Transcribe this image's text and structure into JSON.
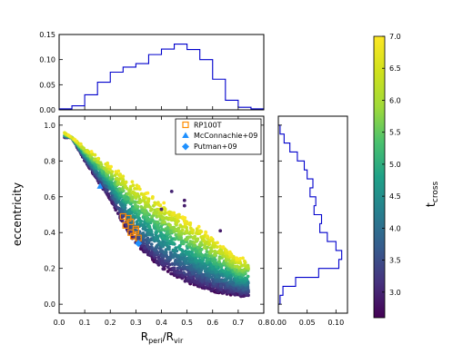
{
  "chart_data": [
    {
      "panel": "main",
      "type": "scatter",
      "xlabel": "R",
      "xlabel_sub": "peri",
      "xlabel_mid": "/R",
      "xlabel_sub2": "vir",
      "ylabel": "eccentricity",
      "xlim": [
        0.0,
        0.8
      ],
      "ylim": [
        -0.05,
        1.05
      ],
      "xticks": [
        "0.0",
        "0.1",
        "0.2",
        "0.3",
        "0.4",
        "0.5",
        "0.6",
        "0.7",
        "0.8"
      ],
      "yticks": [
        "0.0",
        "0.2",
        "0.4",
        "0.6",
        "0.8",
        "1.0"
      ],
      "simulated_cloud": {
        "description_of_shape": "band below upper envelope e = 1 - x",
        "upper_edge": [
          [
            0.0,
            0.98
          ],
          [
            0.1,
            0.88
          ],
          [
            0.2,
            0.78
          ],
          [
            0.3,
            0.68
          ],
          [
            0.4,
            0.58
          ],
          [
            0.5,
            0.48
          ],
          [
            0.6,
            0.38
          ],
          [
            0.7,
            0.26
          ]
        ],
        "lower_edge": [
          [
            0.05,
            0.93
          ],
          [
            0.1,
            0.8
          ],
          [
            0.2,
            0.58
          ],
          [
            0.25,
            0.45
          ],
          [
            0.3,
            0.33
          ],
          [
            0.4,
            0.2
          ],
          [
            0.5,
            0.12
          ],
          [
            0.6,
            0.07
          ],
          [
            0.72,
            0.04
          ]
        ],
        "color_variable": "t_cross"
      },
      "outliers": [
        {
          "x": 0.44,
          "y": 0.63,
          "t": 3.0
        },
        {
          "x": 0.49,
          "y": 0.58,
          "t": 2.9
        },
        {
          "x": 0.49,
          "y": 0.55,
          "t": 2.9
        },
        {
          "x": 0.4,
          "y": 0.53,
          "t": 3.0
        },
        {
          "x": 0.63,
          "y": 0.41,
          "t": 2.9
        }
      ],
      "series": [
        {
          "name": "RP100T",
          "marker": "open-square",
          "color": "#ff8c00",
          "points": [
            [
              0.25,
              0.49
            ],
            [
              0.27,
              0.48
            ],
            [
              0.28,
              0.46
            ],
            [
              0.26,
              0.44
            ],
            [
              0.28,
              0.4
            ],
            [
              0.3,
              0.42
            ],
            [
              0.29,
              0.38
            ],
            [
              0.31,
              0.37
            ],
            [
              0.3,
              0.41
            ]
          ]
        },
        {
          "name": "McConnachie+09",
          "marker": "triangle",
          "color": "#1e90ff",
          "points": [
            [
              0.16,
              0.66
            ]
          ]
        },
        {
          "name": "Putman+09",
          "marker": "diamond",
          "color": "#1e90ff",
          "points": [
            [
              0.31,
              0.34
            ]
          ]
        }
      ],
      "legend_position": "upper-right"
    },
    {
      "panel": "top-histogram",
      "type": "bar",
      "style": "step",
      "color": "#0000cc",
      "xlim": [
        0.0,
        0.8
      ],
      "ylim": [
        0.0,
        0.15
      ],
      "yticks": [
        "0.00",
        "0.05",
        "0.10",
        "0.15"
      ],
      "bin_edges": [
        0.0,
        0.05,
        0.1,
        0.15,
        0.2,
        0.25,
        0.3,
        0.35,
        0.4,
        0.45,
        0.5,
        0.55,
        0.6,
        0.65,
        0.7,
        0.75,
        0.8
      ],
      "values": [
        0.002,
        0.008,
        0.03,
        0.055,
        0.075,
        0.085,
        0.092,
        0.11,
        0.121,
        0.131,
        0.12,
        0.1,
        0.061,
        0.019,
        0.005,
        0.002
      ]
    },
    {
      "panel": "right-histogram",
      "type": "bar",
      "style": "step",
      "orientation": "horizontal",
      "color": "#0000cc",
      "xlim": [
        0.0,
        0.12
      ],
      "ylim": [
        -0.05,
        1.05
      ],
      "xticks": [
        "0.00",
        "0.05",
        "0.10"
      ],
      "bin_edges": [
        0.0,
        0.05,
        0.1,
        0.15,
        0.2,
        0.25,
        0.3,
        0.35,
        0.4,
        0.45,
        0.5,
        0.55,
        0.6,
        0.65,
        0.7,
        0.75,
        0.8,
        0.85,
        0.9,
        0.95,
        1.0
      ],
      "values": [
        0.003,
        0.008,
        0.03,
        0.07,
        0.105,
        0.11,
        0.1,
        0.085,
        0.072,
        0.075,
        0.062,
        0.065,
        0.055,
        0.06,
        0.05,
        0.045,
        0.033,
        0.02,
        0.01,
        0.003
      ]
    },
    {
      "panel": "colorbar",
      "type": "heatmap",
      "colormap": "viridis",
      "label": "t",
      "label_sub": "cross",
      "range": [
        2.6,
        7.0
      ],
      "ticks": [
        "3.0",
        "3.5",
        "4.0",
        "4.5",
        "5.0",
        "5.5",
        "6.0",
        "6.5",
        "7.0"
      ]
    }
  ]
}
